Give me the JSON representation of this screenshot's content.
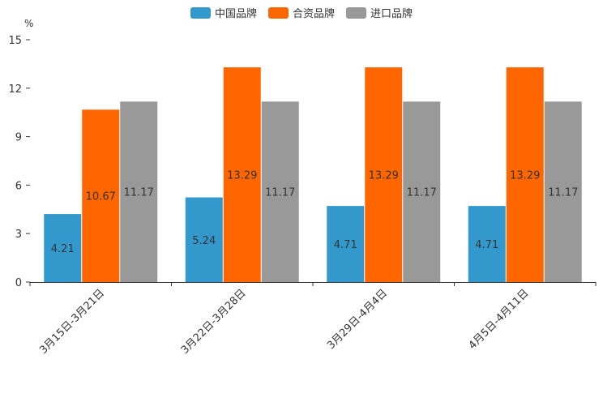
{
  "chart_data": {
    "type": "bar",
    "title": "",
    "unit_label": "%",
    "categories": [
      "3月15日-3月21日",
      "3月22日-3月28日",
      "3月29日-4月4日",
      "4月5日-4月11日"
    ],
    "series": [
      {
        "name": "中国品牌",
        "color": "#3399cc",
        "values": [
          4.21,
          5.24,
          4.71,
          4.71
        ]
      },
      {
        "name": "合资品牌",
        "color": "#ff6600",
        "values": [
          10.67,
          13.29,
          13.29,
          13.29
        ]
      },
      {
        "name": "进口品牌",
        "color": "#999999",
        "values": [
          11.17,
          11.17,
          11.17,
          11.17
        ]
      }
    ],
    "ylim": [
      0,
      15
    ],
    "yticks": [
      0,
      3,
      6,
      9,
      12,
      15
    ],
    "ytick_labels": [
      "0",
      "3",
      "6",
      "9",
      "12",
      "15"
    ],
    "xlabel": "",
    "ylabel": "%",
    "legend_position": "top-center",
    "grid": false
  }
}
